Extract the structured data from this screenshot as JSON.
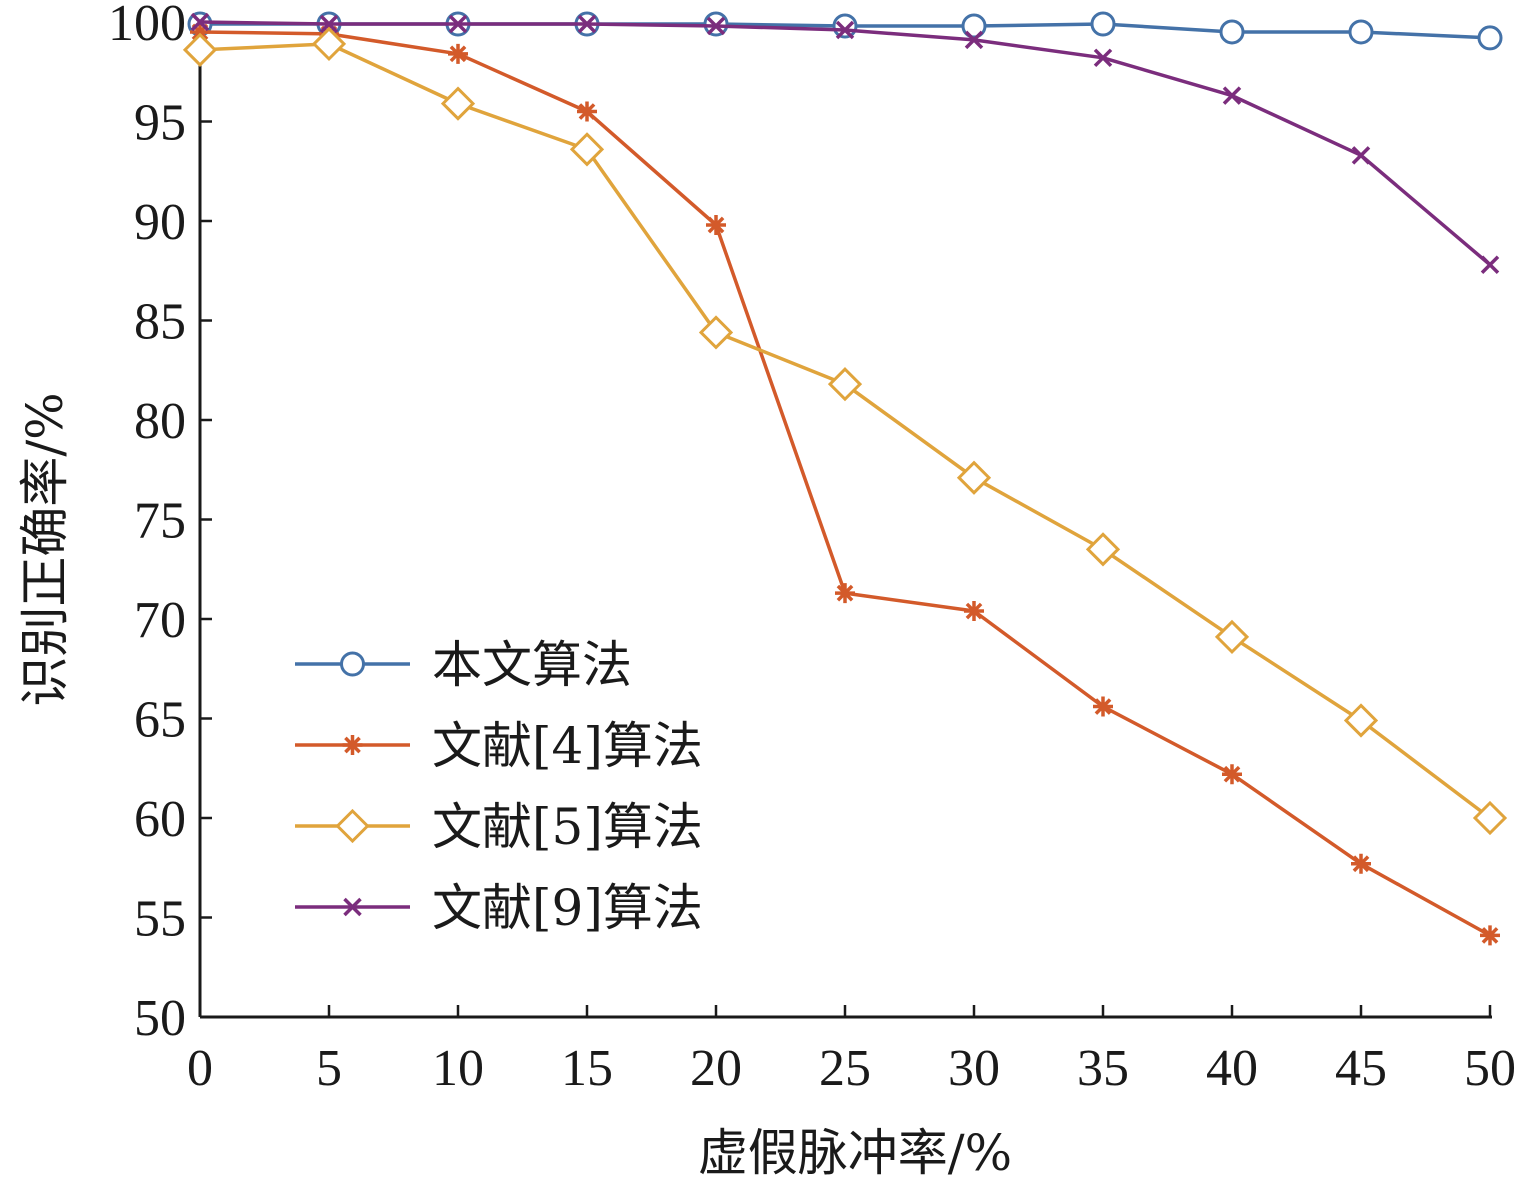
{
  "chart_data": {
    "type": "line",
    "title": "",
    "xlabel": "虚假脉冲率/%",
    "ylabel": "识别正确率/%",
    "xlim": [
      0,
      50
    ],
    "ylim": [
      50,
      100
    ],
    "xticks": [
      0,
      5,
      10,
      15,
      20,
      25,
      30,
      35,
      40,
      45,
      50
    ],
    "yticks": [
      50,
      55,
      60,
      65,
      70,
      75,
      80,
      85,
      90,
      95,
      100
    ],
    "grid": false,
    "legend_position": "bottom-left",
    "x": [
      0,
      5,
      10,
      15,
      20,
      25,
      30,
      35,
      40,
      45,
      50
    ],
    "series": [
      {
        "name": "本文算法",
        "marker": "circle",
        "color": "#4472a8",
        "values": [
          99.9,
          99.9,
          99.9,
          99.9,
          99.9,
          99.8,
          99.8,
          99.9,
          99.5,
          99.5,
          99.2
        ]
      },
      {
        "name": "文献[4]算法",
        "marker": "asterisk",
        "color": "#d35a2a",
        "values": [
          99.5,
          99.4,
          98.4,
          95.5,
          89.8,
          71.3,
          70.4,
          65.6,
          62.2,
          57.7,
          54.1
        ]
      },
      {
        "name": "文献[5]算法",
        "marker": "diamond",
        "color": "#e0a43c",
        "values": [
          98.6,
          98.9,
          95.9,
          93.6,
          84.4,
          81.8,
          77.1,
          73.5,
          69.1,
          64.9,
          60.0
        ]
      },
      {
        "name": "文献[9]算法",
        "marker": "x",
        "color": "#7b2d7d",
        "values": [
          100.0,
          99.9,
          99.9,
          99.9,
          99.8,
          99.6,
          99.1,
          98.2,
          96.3,
          93.3,
          87.8
        ]
      }
    ]
  }
}
